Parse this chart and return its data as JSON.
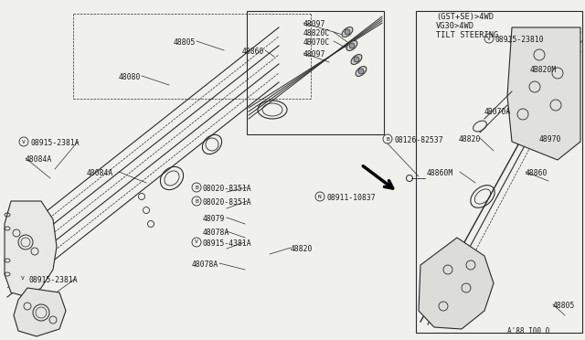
{
  "bg_color": "#f0f0ec",
  "line_color": "#2a2a2a",
  "text_color": "#1a1a1a",
  "title_line1": "(GST+SE)>4WD",
  "title_line2": "VG30>4WD",
  "title_line3": "TILT STEERING",
  "footer": "A'88 I00 0",
  "fig_width": 6.4,
  "fig_height": 3.72,
  "dpi": 100
}
